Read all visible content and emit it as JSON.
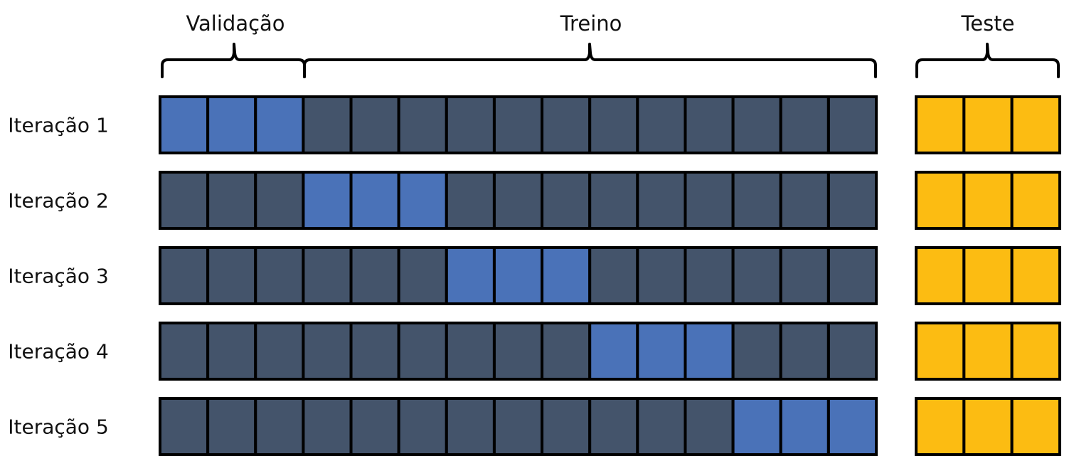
{
  "headers": {
    "validation": "Validação",
    "train": "Treino",
    "test": "Teste"
  },
  "iterations": [
    {
      "label": "Iteração 1",
      "validation_start": 1
    },
    {
      "label": "Iteração 2",
      "validation_start": 4
    },
    {
      "label": "Iteração 3",
      "validation_start": 7
    },
    {
      "label": "Iteração 4",
      "validation_start": 10
    },
    {
      "label": "Iteração 5",
      "validation_start": 13
    }
  ],
  "blocks": {
    "train_validation_count": 15,
    "validation_size": 3,
    "test_count": 3
  },
  "colors": {
    "validation": "#4a72b8",
    "train": "#44546b",
    "test": "#fcbc12",
    "border": "#000000",
    "text": "#111111"
  }
}
